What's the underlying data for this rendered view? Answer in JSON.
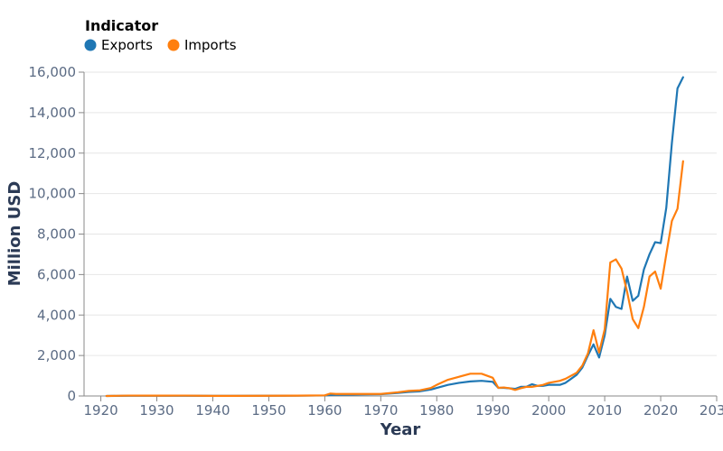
{
  "chart_data": {
    "type": "line",
    "title": "",
    "xlabel": "Year",
    "ylabel": "Million USD",
    "xlim": [
      1917,
      2030
    ],
    "ylim": [
      0,
      16000
    ],
    "x_ticks": [
      1920,
      1930,
      1940,
      1950,
      1960,
      1970,
      1980,
      1990,
      2000,
      2010,
      2020,
      2030
    ],
    "y_ticks": [
      0,
      2000,
      4000,
      6000,
      8000,
      10000,
      12000,
      14000,
      16000
    ],
    "x_tick_labels": [
      "1920",
      "1930",
      "1940",
      "1950",
      "1960",
      "1970",
      "1980",
      "1990",
      "2000",
      "2010",
      "2020",
      "2030"
    ],
    "y_tick_labels": [
      "0",
      "2,000",
      "4,000",
      "6,000",
      "8,000",
      "10,000",
      "12,000",
      "14,000",
      "16,000"
    ],
    "grid": true,
    "legend": {
      "title": "Indicator",
      "position": "top-left"
    },
    "series": [
      {
        "name": "Exports",
        "color": "#1f77b4",
        "points": [
          [
            1921,
            0
          ],
          [
            1925,
            10
          ],
          [
            1930,
            10
          ],
          [
            1935,
            10
          ],
          [
            1940,
            5
          ],
          [
            1950,
            10
          ],
          [
            1955,
            15
          ],
          [
            1960,
            25
          ],
          [
            1961,
            50
          ],
          [
            1962,
            60
          ],
          [
            1965,
            70
          ],
          [
            1968,
            80
          ],
          [
            1970,
            90
          ],
          [
            1973,
            150
          ],
          [
            1975,
            200
          ],
          [
            1977,
            230
          ],
          [
            1979,
            320
          ],
          [
            1980,
            400
          ],
          [
            1982,
            550
          ],
          [
            1984,
            650
          ],
          [
            1986,
            720
          ],
          [
            1988,
            750
          ],
          [
            1990,
            700
          ],
          [
            1991,
            400
          ],
          [
            1992,
            400
          ],
          [
            1993,
            380
          ],
          [
            1994,
            350
          ],
          [
            1995,
            450
          ],
          [
            1996,
            450
          ],
          [
            1997,
            580
          ],
          [
            1998,
            500
          ],
          [
            1999,
            500
          ],
          [
            2000,
            550
          ],
          [
            2001,
            550
          ],
          [
            2002,
            550
          ],
          [
            2003,
            650
          ],
          [
            2004,
            850
          ],
          [
            2005,
            1050
          ],
          [
            2006,
            1400
          ],
          [
            2007,
            2000
          ],
          [
            2008,
            2550
          ],
          [
            2009,
            1900
          ],
          [
            2010,
            3000
          ],
          [
            2011,
            4800
          ],
          [
            2012,
            4400
          ],
          [
            2013,
            4300
          ],
          [
            2014,
            5900
          ],
          [
            2015,
            4700
          ],
          [
            2016,
            4950
          ],
          [
            2017,
            6250
          ],
          [
            2018,
            7000
          ],
          [
            2019,
            7600
          ],
          [
            2020,
            7550
          ],
          [
            2021,
            9300
          ],
          [
            2022,
            12500
          ],
          [
            2023,
            15200
          ],
          [
            2024,
            15750
          ]
        ]
      },
      {
        "name": "Imports",
        "color": "#ff7f0e",
        "points": [
          [
            1921,
            0
          ],
          [
            1925,
            20
          ],
          [
            1930,
            15
          ],
          [
            1935,
            20
          ],
          [
            1940,
            5
          ],
          [
            1950,
            10
          ],
          [
            1955,
            15
          ],
          [
            1960,
            30
          ],
          [
            1961,
            120
          ],
          [
            1962,
            100
          ],
          [
            1965,
            100
          ],
          [
            1968,
            100
          ],
          [
            1970,
            100
          ],
          [
            1973,
            180
          ],
          [
            1975,
            250
          ],
          [
            1977,
            280
          ],
          [
            1979,
            400
          ],
          [
            1980,
            550
          ],
          [
            1982,
            800
          ],
          [
            1984,
            950
          ],
          [
            1986,
            1100
          ],
          [
            1988,
            1100
          ],
          [
            1990,
            900
          ],
          [
            1991,
            400
          ],
          [
            1992,
            420
          ],
          [
            1993,
            380
          ],
          [
            1994,
            300
          ],
          [
            1995,
            380
          ],
          [
            1996,
            450
          ],
          [
            1997,
            450
          ],
          [
            1998,
            500
          ],
          [
            1999,
            550
          ],
          [
            2000,
            650
          ],
          [
            2001,
            700
          ],
          [
            2002,
            750
          ],
          [
            2003,
            850
          ],
          [
            2004,
            1000
          ],
          [
            2005,
            1150
          ],
          [
            2006,
            1500
          ],
          [
            2007,
            2100
          ],
          [
            2008,
            3250
          ],
          [
            2009,
            2150
          ],
          [
            2010,
            3300
          ],
          [
            2011,
            6600
          ],
          [
            2012,
            6750
          ],
          [
            2013,
            6300
          ],
          [
            2014,
            5150
          ],
          [
            2015,
            3800
          ],
          [
            2016,
            3350
          ],
          [
            2017,
            4400
          ],
          [
            2018,
            5900
          ],
          [
            2019,
            6150
          ],
          [
            2020,
            5300
          ],
          [
            2021,
            7000
          ],
          [
            2022,
            8650
          ],
          [
            2023,
            9250
          ],
          [
            2024,
            11600
          ]
        ]
      }
    ]
  }
}
